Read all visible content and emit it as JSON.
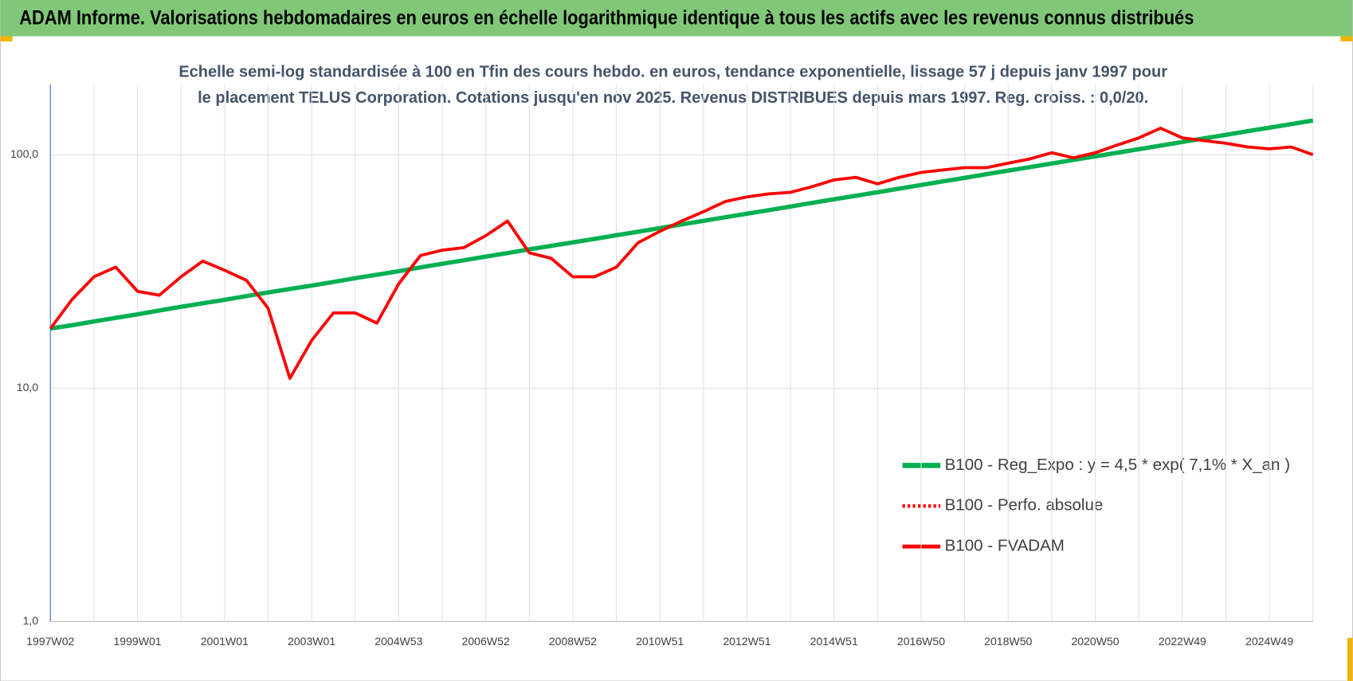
{
  "header": {
    "title": "ADAM Informe. Valorisations hebdomadaires en euros en échelle logarithmique identique à tous les actifs avec les revenus connus distribués"
  },
  "chart_data": {
    "type": "line",
    "title": "Echelle semi-log standardisée à 100 en Tfin des cours hebdo. en euros, tendance exponentielle, lissage 57 j depuis janv 1997 pour le placement TELUS Corporation. Cotations jusqu'en nov 2025. Revenus DISTRIBUES depuis mars 1997. Reg. croiss. : 0,0/20.",
    "categories": [
      "1997W02",
      null,
      null,
      null,
      "1999W01",
      null,
      null,
      null,
      "2001W01",
      null,
      null,
      null,
      "2003W01",
      null,
      null,
      null,
      "2004W53",
      null,
      null,
      null,
      "2006W52",
      null,
      null,
      null,
      "2008W52",
      null,
      null,
      null,
      "2010W51",
      null,
      null,
      null,
      "2012W51",
      null,
      null,
      null,
      "2014W51",
      null,
      null,
      null,
      "2016W50",
      null,
      null,
      null,
      "2018W50",
      null,
      null,
      null,
      "2020W50",
      null,
      null,
      null,
      "2022W49",
      null,
      null,
      null,
      "2024W49",
      null,
      null
    ],
    "series": [
      {
        "name": "B100 - Reg_Expo : y = 4,5 * exp( 7,1% *  X_an )",
        "color": "#00b050",
        "width": 5,
        "dash": "solid",
        "values": [
          18.0,
          18.6,
          19.3,
          20.0,
          20.7,
          21.5,
          22.3,
          23.1,
          23.9,
          24.8,
          25.7,
          26.6,
          27.5,
          28.5,
          29.6,
          30.6,
          31.7,
          32.9,
          34.1,
          35.3,
          36.6,
          37.9,
          39.3,
          40.7,
          42.1,
          43.6,
          45.2,
          46.8,
          48.5,
          50.3,
          52.1,
          54.0,
          55.9,
          57.9,
          60.0,
          62.2,
          64.4,
          66.7,
          69.1,
          71.6,
          74.2,
          76.9,
          79.6,
          82.5,
          85.5,
          88.5,
          91.7,
          95.0,
          98.4,
          102,
          105.6,
          109.4,
          113.4,
          117.5,
          121.7,
          126.1,
          130.6,
          135.3,
          140.2
        ]
      },
      {
        "name": "B100 - Perfo. absolue",
        "color": "#ff0000",
        "width": 3,
        "dash": "dotted",
        "values": [
          null,
          null,
          null,
          null,
          null,
          null,
          null,
          null,
          null,
          null,
          null,
          null,
          null,
          null,
          null,
          null,
          null,
          null,
          null,
          null,
          null,
          null,
          null,
          null,
          null,
          null,
          null,
          null,
          null,
          null,
          null,
          null,
          null,
          null,
          null,
          null,
          null,
          null,
          null,
          null,
          null,
          null,
          null,
          null,
          null,
          null,
          null,
          null,
          null,
          null,
          null,
          null,
          null,
          null,
          null,
          null,
          null,
          null,
          null
        ]
      },
      {
        "name": "B100 - FVADAM",
        "color": "#ff0000",
        "width": 3.5,
        "dash": "solid",
        "values": [
          18,
          24,
          30,
          33,
          26,
          25,
          30,
          35,
          32,
          29,
          22,
          11,
          16,
          21,
          21,
          19,
          28,
          37,
          39,
          40,
          45,
          52,
          38,
          36,
          30,
          30,
          33,
          42,
          47,
          52,
          57,
          63,
          66,
          68,
          69,
          73,
          78,
          80,
          75,
          80,
          84,
          86,
          88,
          88,
          92,
          96,
          102,
          97,
          102,
          110,
          118,
          130,
          118,
          115,
          112,
          108,
          106,
          108,
          100
        ]
      }
    ],
    "log_scale": true,
    "ylim": [
      1,
      200
    ],
    "yticks": [
      {
        "value": 1,
        "label": "1,0"
      },
      {
        "value": 10,
        "label": "10,0"
      },
      {
        "value": 100,
        "label": "100,0"
      }
    ],
    "grid": true
  }
}
